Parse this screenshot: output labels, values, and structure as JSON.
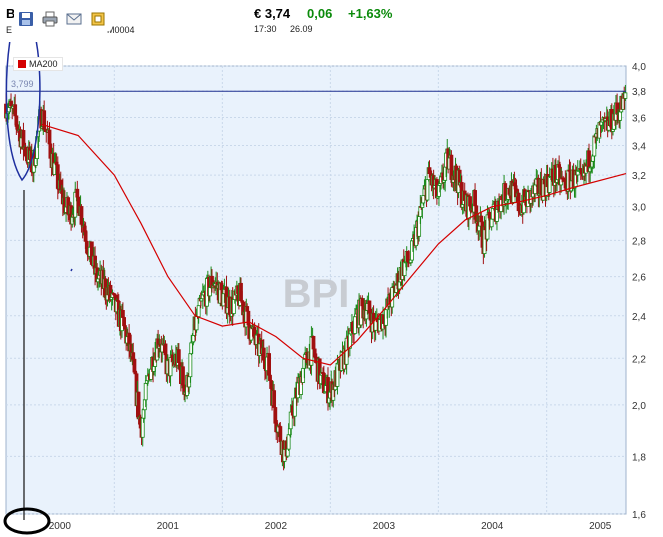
{
  "header": {
    "ticker_letter": "B",
    "ticker_code_prefix": "E",
    "ticker_code_suffix": "M0004",
    "price": "€ 3,74",
    "change": "0,06",
    "change_pct": "+1,63%",
    "time": "17:30",
    "date": "26.09"
  },
  "toolbar": {
    "icons": [
      "save-icon",
      "print-icon",
      "email-icon",
      "export-icon"
    ]
  },
  "colors": {
    "plot_background": "#e9f2fc",
    "grid": "#c9d8ea",
    "up_candle": "#1a8a1a",
    "down_candle": "#a01010",
    "ma200": "#d40000",
    "reference_line": "#1e2f8f",
    "annotation": "#1e2f9f",
    "change_positive": "#0a8a0a"
  },
  "chart_data": {
    "type": "candlestick",
    "watermark": "BPI",
    "y_scale": "log",
    "ylim": [
      1.6,
      4.0
    ],
    "yticks": [
      "4,0",
      "3,8",
      "3,6",
      "3,4",
      "3,2",
      "3,0",
      "2,8",
      "2,6",
      "2,4",
      "2,2",
      "2,0",
      "1,8",
      "1,6"
    ],
    "xlim": [
      "2000-01-01",
      "2005-09-26"
    ],
    "xticks": [
      "2000",
      "2001",
      "2002",
      "2003",
      "2004",
      "2005"
    ],
    "grid": true,
    "reference_line": {
      "value": 3.799,
      "label": "3,799"
    },
    "series": [
      {
        "name": "MA200",
        "kind": "moving_average",
        "points": [
          [
            "2000-05-01",
            3.55
          ],
          [
            "2000-09-01",
            3.47
          ],
          [
            "2001-01-01",
            3.2
          ],
          [
            "2001-04-01",
            2.9
          ],
          [
            "2001-07-01",
            2.6
          ],
          [
            "2001-10-01",
            2.4
          ],
          [
            "2002-01-01",
            2.35
          ],
          [
            "2002-04-01",
            2.37
          ],
          [
            "2002-07-01",
            2.3
          ],
          [
            "2002-10-01",
            2.2
          ],
          [
            "2003-01-01",
            2.17
          ],
          [
            "2003-04-01",
            2.28
          ],
          [
            "2003-07-01",
            2.43
          ],
          [
            "2003-10-01",
            2.6
          ],
          [
            "2004-01-01",
            2.78
          ],
          [
            "2004-04-01",
            2.92
          ],
          [
            "2004-07-01",
            3.0
          ],
          [
            "2004-10-01",
            3.03
          ],
          [
            "2005-01-01",
            3.07
          ],
          [
            "2005-04-01",
            3.12
          ],
          [
            "2005-09-26",
            3.21
          ]
        ]
      },
      {
        "name": "",
        "kind": "price",
        "points": [
          [
            "2000-01-01",
            3.7
          ],
          [
            "2000-02-01",
            3.6
          ],
          [
            "2000-03-01",
            3.4
          ],
          [
            "2000-04-01",
            3.25
          ],
          [
            "2000-05-01",
            3.65
          ],
          [
            "2000-06-01",
            3.35
          ],
          [
            "2000-07-01",
            3.1
          ],
          [
            "2000-08-01",
            2.95
          ],
          [
            "2000-09-01",
            3.05
          ],
          [
            "2000-10-01",
            2.8
          ],
          [
            "2000-11-01",
            2.6
          ],
          [
            "2000-12-01",
            2.55
          ],
          [
            "2001-01-01",
            2.45
          ],
          [
            "2001-02-01",
            2.35
          ],
          [
            "2001-03-01",
            2.2
          ],
          [
            "2001-04-01",
            1.9
          ],
          [
            "2001-05-01",
            2.15
          ],
          [
            "2001-06-01",
            2.3
          ],
          [
            "2001-07-01",
            2.15
          ],
          [
            "2001-08-01",
            2.2
          ],
          [
            "2001-09-01",
            2.05
          ],
          [
            "2001-10-01",
            2.35
          ],
          [
            "2001-11-01",
            2.5
          ],
          [
            "2001-12-01",
            2.58
          ],
          [
            "2002-01-01",
            2.5
          ],
          [
            "2002-02-01",
            2.45
          ],
          [
            "2002-03-01",
            2.5
          ],
          [
            "2002-04-01",
            2.35
          ],
          [
            "2002-05-01",
            2.25
          ],
          [
            "2002-06-01",
            2.2
          ],
          [
            "2002-07-01",
            1.95
          ],
          [
            "2002-08-01",
            1.8
          ],
          [
            "2002-09-01",
            2.0
          ],
          [
            "2002-10-01",
            2.15
          ],
          [
            "2002-11-01",
            2.25
          ],
          [
            "2002-12-01",
            2.1
          ],
          [
            "2003-01-01",
            2.05
          ],
          [
            "2003-02-01",
            2.15
          ],
          [
            "2003-03-01",
            2.25
          ],
          [
            "2003-04-01",
            2.4
          ],
          [
            "2003-05-01",
            2.45
          ],
          [
            "2003-06-01",
            2.35
          ],
          [
            "2003-07-01",
            2.4
          ],
          [
            "2003-08-01",
            2.5
          ],
          [
            "2003-09-01",
            2.65
          ],
          [
            "2003-10-01",
            2.7
          ],
          [
            "2003-11-01",
            2.95
          ],
          [
            "2003-12-01",
            3.2
          ],
          [
            "2004-01-01",
            3.05
          ],
          [
            "2004-02-01",
            3.3
          ],
          [
            "2004-03-01",
            3.2
          ],
          [
            "2004-04-01",
            3.0
          ],
          [
            "2004-05-01",
            3.02
          ],
          [
            "2004-06-01",
            2.8
          ],
          [
            "2004-07-01",
            2.95
          ],
          [
            "2004-08-01",
            3.05
          ],
          [
            "2004-09-01",
            3.12
          ],
          [
            "2004-10-01",
            3.0
          ],
          [
            "2004-11-01",
            3.05
          ],
          [
            "2004-12-01",
            3.1
          ],
          [
            "2005-01-01",
            3.15
          ],
          [
            "2005-02-01",
            3.2
          ],
          [
            "2005-03-01",
            3.14
          ],
          [
            "2005-04-01",
            3.18
          ],
          [
            "2005-05-01",
            3.15
          ],
          [
            "2005-06-01",
            3.35
          ],
          [
            "2005-07-01",
            3.5
          ],
          [
            "2005-08-01",
            3.55
          ],
          [
            "2005-09-26",
            3.74
          ]
        ]
      }
    ]
  }
}
